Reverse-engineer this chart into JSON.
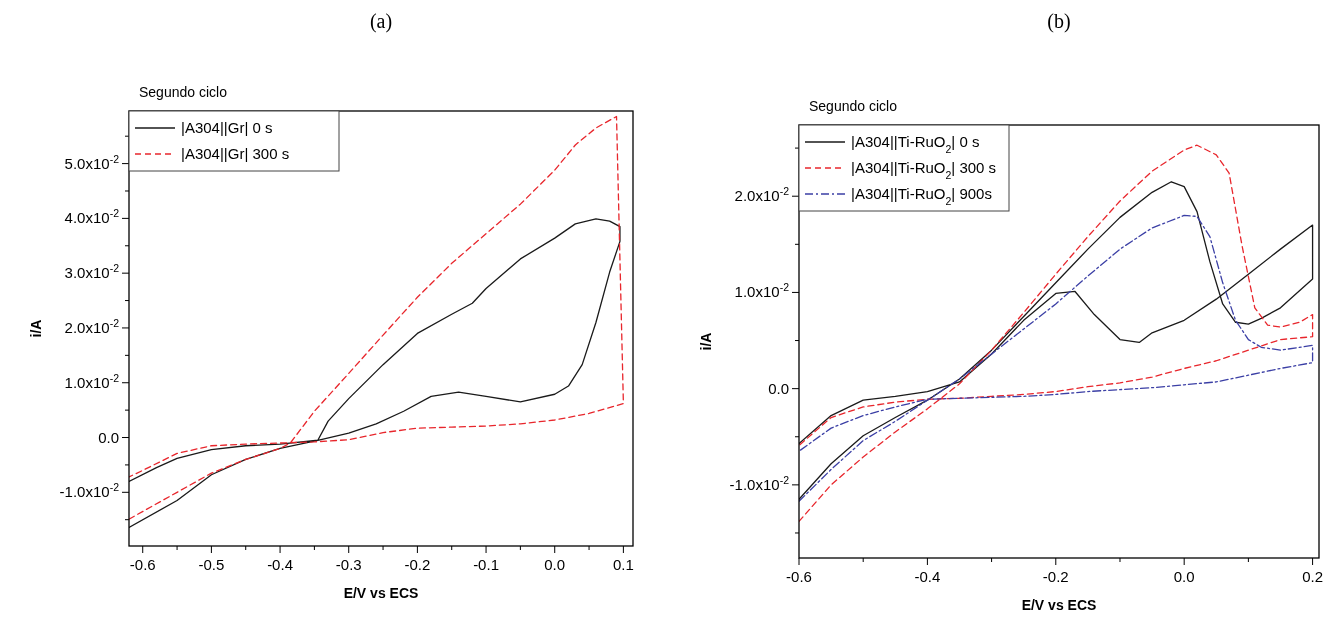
{
  "chart_data": [
    {
      "type": "line",
      "title": "(a)",
      "subtitle": "Segundo ciclo",
      "xlabel": "E/V vs ECS",
      "ylabel": "i/A",
      "legend": "top left",
      "xlim": [
        -0.62,
        0.114
      ],
      "ylim": [
        -0.0198,
        0.0596
      ],
      "xticks": [
        -0.6,
        {
          "value": -0.55,
          "label": null
        },
        -0.5,
        {
          "value": -0.45,
          "label": null
        },
        -0.4,
        {
          "value": -0.35,
          "label": null
        },
        -0.3,
        {
          "value": -0.25,
          "label": null
        },
        -0.2,
        {
          "value": -0.15,
          "label": null
        },
        -0.1,
        {
          "value": -0.05,
          "label": null
        },
        {
          "value": 0,
          "label": "0.0"
        },
        {
          "value": 0.05,
          "label": null
        },
        0.1
      ],
      "yticks": [
        {
          "value": -0.015,
          "label": null
        },
        {
          "value": -0.01,
          "label": "-1.0x10$^{-2}$"
        },
        {
          "value": -0.005,
          "label": null
        },
        {
          "value": 0,
          "label": "0.0"
        },
        {
          "value": 0.005,
          "label": null
        },
        {
          "value": 0.01,
          "label": "1.0x10$^{-2}$"
        },
        {
          "value": 0.015,
          "label": null
        },
        {
          "value": 0.02,
          "label": "2.0x10$^{-2}$"
        },
        {
          "value": 0.025,
          "label": null
        },
        {
          "value": 0.03,
          "label": "3.0x10$^{-2}$"
        },
        {
          "value": 0.035,
          "label": null
        },
        {
          "value": 0.04,
          "label": "4.0x10$^{-2}$"
        },
        {
          "value": 0.045,
          "label": null
        },
        {
          "value": 0.05,
          "label": "5.0x10$^{-2}$"
        },
        {
          "value": 0.055,
          "label": null
        }
      ],
      "series": [
        {
          "name": "|A304||Gr| 0 s",
          "color": "#1a1a1a",
          "line_style": "solid",
          "x": [
            -0.62,
            -0.55,
            -0.5,
            -0.45,
            -0.4,
            -0.345,
            -0.33,
            -0.3,
            -0.25,
            -0.2,
            -0.15,
            -0.12,
            -0.1,
            -0.05,
            0,
            0.03,
            0.06,
            0.08,
            0.095,
            0.095,
            0.08,
            0.06,
            0.04,
            0.02,
            0,
            -0.05,
            -0.1,
            -0.14,
            -0.18,
            -0.22,
            -0.26,
            -0.3,
            -0.345,
            -0.4,
            -0.45,
            -0.5,
            -0.55,
            -0.58,
            -0.62
          ],
          "values": [
            -0.0164,
            -0.0115,
            -0.0068,
            -0.004,
            -0.002,
            -0.0005,
            0.003,
            0.0071,
            0.0133,
            0.019,
            0.0225,
            0.0245,
            0.0272,
            0.0326,
            0.0364,
            0.039,
            0.0399,
            0.0395,
            0.0385,
            0.0358,
            0.0302,
            0.021,
            0.0133,
            0.0094,
            0.0079,
            0.0065,
            0.0075,
            0.0083,
            0.0075,
            0.0048,
            0.0025,
            0.0008,
            -0.0005,
            -0.0012,
            -0.0015,
            -0.0022,
            -0.0038,
            -0.0055,
            -0.008
          ]
        },
        {
          "name": "|A304||Gr| 300 s",
          "color": "#e8262c",
          "line_style": "dashed",
          "x": [
            -0.62,
            -0.55,
            -0.5,
            -0.45,
            -0.4,
            -0.385,
            -0.35,
            -0.3,
            -0.25,
            -0.2,
            -0.15,
            -0.1,
            -0.05,
            0,
            0.03,
            0.06,
            0.09,
            0.1,
            0.05,
            0,
            -0.05,
            -0.1,
            -0.15,
            -0.2,
            -0.25,
            -0.3,
            -0.35,
            -0.4,
            -0.45,
            -0.5,
            -0.55,
            -0.6,
            -0.62
          ],
          "values": [
            -0.0149,
            -0.01,
            -0.0065,
            -0.004,
            -0.002,
            -0.001,
            0.0048,
            0.0117,
            0.0187,
            0.0256,
            0.0318,
            0.0372,
            0.0426,
            0.0488,
            0.0534,
            0.0565,
            0.0586,
            0.0062,
            0.0044,
            0.0032,
            0.0025,
            0.0021,
            0.0019,
            0.0017,
            0.0009,
            -0.0004,
            -0.0008,
            -0.001,
            -0.0012,
            -0.0015,
            -0.0029,
            -0.006,
            -0.0072
          ]
        }
      ]
    },
    {
      "type": "line",
      "title": "(b)",
      "subtitle": "Segundo ciclo",
      "xlabel": "E/V vs ECS",
      "ylabel": "i/A",
      "legend": "top left",
      "xlim": [
        -0.6,
        0.21
      ],
      "ylim": [
        -0.0176,
        0.0274
      ],
      "xticks": [
        -0.6,
        {
          "value": -0.5,
          "label": null
        },
        -0.4,
        {
          "value": -0.3,
          "label": null
        },
        -0.2,
        {
          "value": -0.1,
          "label": null
        },
        {
          "value": 0,
          "label": "0.0"
        },
        {
          "value": 0.1,
          "label": null
        },
        0.2
      ],
      "yticks": [
        {
          "value": -0.015,
          "label": null
        },
        {
          "value": -0.01,
          "label": "-1.0x10$^{-2}$"
        },
        {
          "value": -0.005,
          "label": null
        },
        {
          "value": 0,
          "label": "0.0"
        },
        {
          "value": 0.005,
          "label": null
        },
        {
          "value": 0.01,
          "label": "1.0x10$^{-2}$"
        },
        {
          "value": 0.015,
          "label": null
        },
        {
          "value": 0.02,
          "label": "2.0x10$^{-2}$"
        },
        {
          "value": 0.025,
          "label": null
        }
      ],
      "series": [
        {
          "name": "|A304||Ti-RuO$_{2}$| 0 s",
          "color": "#1a1a1a",
          "line_style": "solid",
          "x": [
            -0.6,
            -0.55,
            -0.5,
            -0.45,
            -0.4,
            -0.35,
            -0.3,
            -0.25,
            -0.2,
            -0.15,
            -0.1,
            -0.05,
            -0.02,
            0,
            0.02,
            0.04,
            0.06,
            0.08,
            0.1,
            0.12,
            0.15,
            0.2,
            0.2,
            0.15,
            0.1,
            0.05,
            0,
            -0.05,
            -0.07,
            -0.1,
            -0.14,
            -0.17,
            -0.2,
            -0.25,
            -0.3,
            -0.35,
            -0.4,
            -0.45,
            -0.5,
            -0.55,
            -0.6
          ],
          "values": [
            -0.0115,
            -0.0078,
            -0.0049,
            -0.003,
            -0.0012,
            0.001,
            0.004,
            0.0075,
            0.011,
            0.0145,
            0.0178,
            0.0204,
            0.0215,
            0.021,
            0.0184,
            0.0132,
            0.0088,
            0.0069,
            0.0067,
            0.0073,
            0.0084,
            0.0114,
            0.017,
            0.0145,
            0.0119,
            0.0093,
            0.0071,
            0.0058,
            0.0048,
            0.0051,
            0.0077,
            0.0101,
            0.0099,
            0.0071,
            0.0036,
            0.0007,
            -0.0003,
            -0.0008,
            -0.0012,
            -0.0028,
            -0.0057
          ]
        },
        {
          "name": "|A304||Ti-RuO$_{2}$| 300 s",
          "color": "#e8262c",
          "line_style": "dashed",
          "x": [
            -0.6,
            -0.55,
            -0.5,
            -0.45,
            -0.4,
            -0.35,
            -0.3,
            -0.25,
            -0.2,
            -0.15,
            -0.1,
            -0.05,
            0,
            0.02,
            0.05,
            0.07,
            0.09,
            0.11,
            0.13,
            0.15,
            0.18,
            0.2,
            0.2,
            0.15,
            0.1,
            0.05,
            0,
            -0.05,
            -0.1,
            -0.15,
            -0.2,
            -0.25,
            -0.3,
            -0.35,
            -0.4,
            -0.45,
            -0.5,
            -0.55,
            -0.6
          ],
          "values": [
            -0.0138,
            -0.01,
            -0.0071,
            -0.0045,
            -0.0021,
            0.0005,
            0.004,
            0.0079,
            0.0119,
            0.0158,
            0.0195,
            0.0226,
            0.0248,
            0.0253,
            0.0243,
            0.0224,
            0.0149,
            0.0084,
            0.0066,
            0.0064,
            0.0069,
            0.0077,
            0.0054,
            0.0051,
            0.004,
            0.0029,
            0.0021,
            0.0012,
            0.0006,
            0.0002,
            -0.0003,
            -0.0006,
            -0.0008,
            -0.001,
            -0.0011,
            -0.0014,
            -0.0019,
            -0.003,
            -0.0059
          ]
        },
        {
          "name": "|A304||Ti-RuO$_{2}$| 900s",
          "color": "#3b3fa5",
          "line_style": "dashdot",
          "x": [
            -0.6,
            -0.55,
            -0.5,
            -0.45,
            -0.4,
            -0.35,
            -0.3,
            -0.25,
            -0.2,
            -0.15,
            -0.1,
            -0.05,
            0,
            0.02,
            0.04,
            0.06,
            0.08,
            0.1,
            0.12,
            0.15,
            0.2,
            0.2,
            0.15,
            0.1,
            0.05,
            0,
            -0.05,
            -0.1,
            -0.15,
            -0.2,
            -0.25,
            -0.3,
            -0.35,
            -0.4,
            -0.45,
            -0.5,
            -0.55,
            -0.6
          ],
          "values": [
            -0.0117,
            -0.0084,
            -0.0054,
            -0.0034,
            -0.0012,
            0.001,
            0.0036,
            0.0062,
            0.0088,
            0.0117,
            0.0145,
            0.0167,
            0.018,
            0.0179,
            0.0158,
            0.011,
            0.0071,
            0.0051,
            0.0043,
            0.004,
            0.0045,
            0.0027,
            0.0021,
            0.0014,
            0.0007,
            0.0004,
            0.0001,
            -0.0001,
            -0.0003,
            -0.0006,
            -0.0008,
            -0.0009,
            -0.001,
            -0.0011,
            -0.0019,
            -0.0028,
            -0.0041,
            -0.0065
          ]
        }
      ]
    }
  ]
}
